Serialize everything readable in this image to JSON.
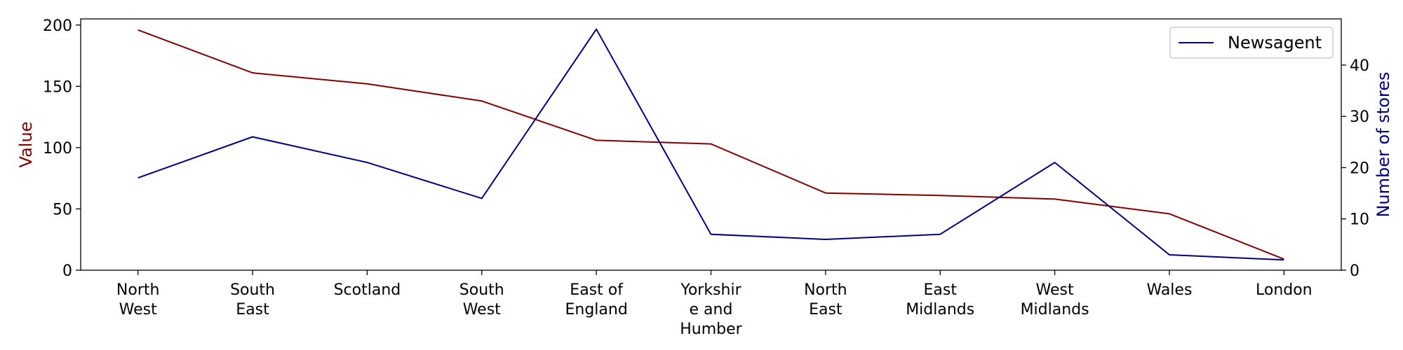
{
  "chart_data": {
    "type": "line",
    "title": "",
    "xlabel": "",
    "categories": [
      [
        "North",
        "West"
      ],
      [
        "South",
        "East"
      ],
      [
        "Scotland"
      ],
      [
        "South",
        "West"
      ],
      [
        "East of",
        "England"
      ],
      [
        "Yorkshir",
        "e and",
        "Humber"
      ],
      [
        "North",
        "East"
      ],
      [
        "East",
        "Midlands"
      ],
      [
        "West",
        "Midlands"
      ],
      [
        "Wales"
      ],
      [
        "London"
      ]
    ],
    "left_axis": {
      "label": "Value",
      "color": "#800000",
      "ylim": [
        0,
        205
      ],
      "ticks": [
        0,
        50,
        100,
        150,
        200
      ]
    },
    "right_axis": {
      "label": "Number of stores",
      "color": "#000080",
      "ylim": [
        0,
        49
      ],
      "ticks": [
        0,
        10,
        20,
        30,
        40
      ]
    },
    "series": [
      {
        "axis": "left",
        "color": "#800000",
        "values": [
          196,
          161,
          152,
          138,
          106,
          103,
          63,
          61,
          58,
          46,
          9
        ]
      },
      {
        "name": "Newsagent",
        "axis": "right",
        "color": "#000080",
        "values": [
          18,
          26,
          21,
          14,
          47,
          7,
          6,
          7,
          21,
          3,
          2
        ]
      }
    ],
    "legend": {
      "placement": "top-right",
      "entries": [
        "Newsagent"
      ]
    },
    "grid": false
  }
}
